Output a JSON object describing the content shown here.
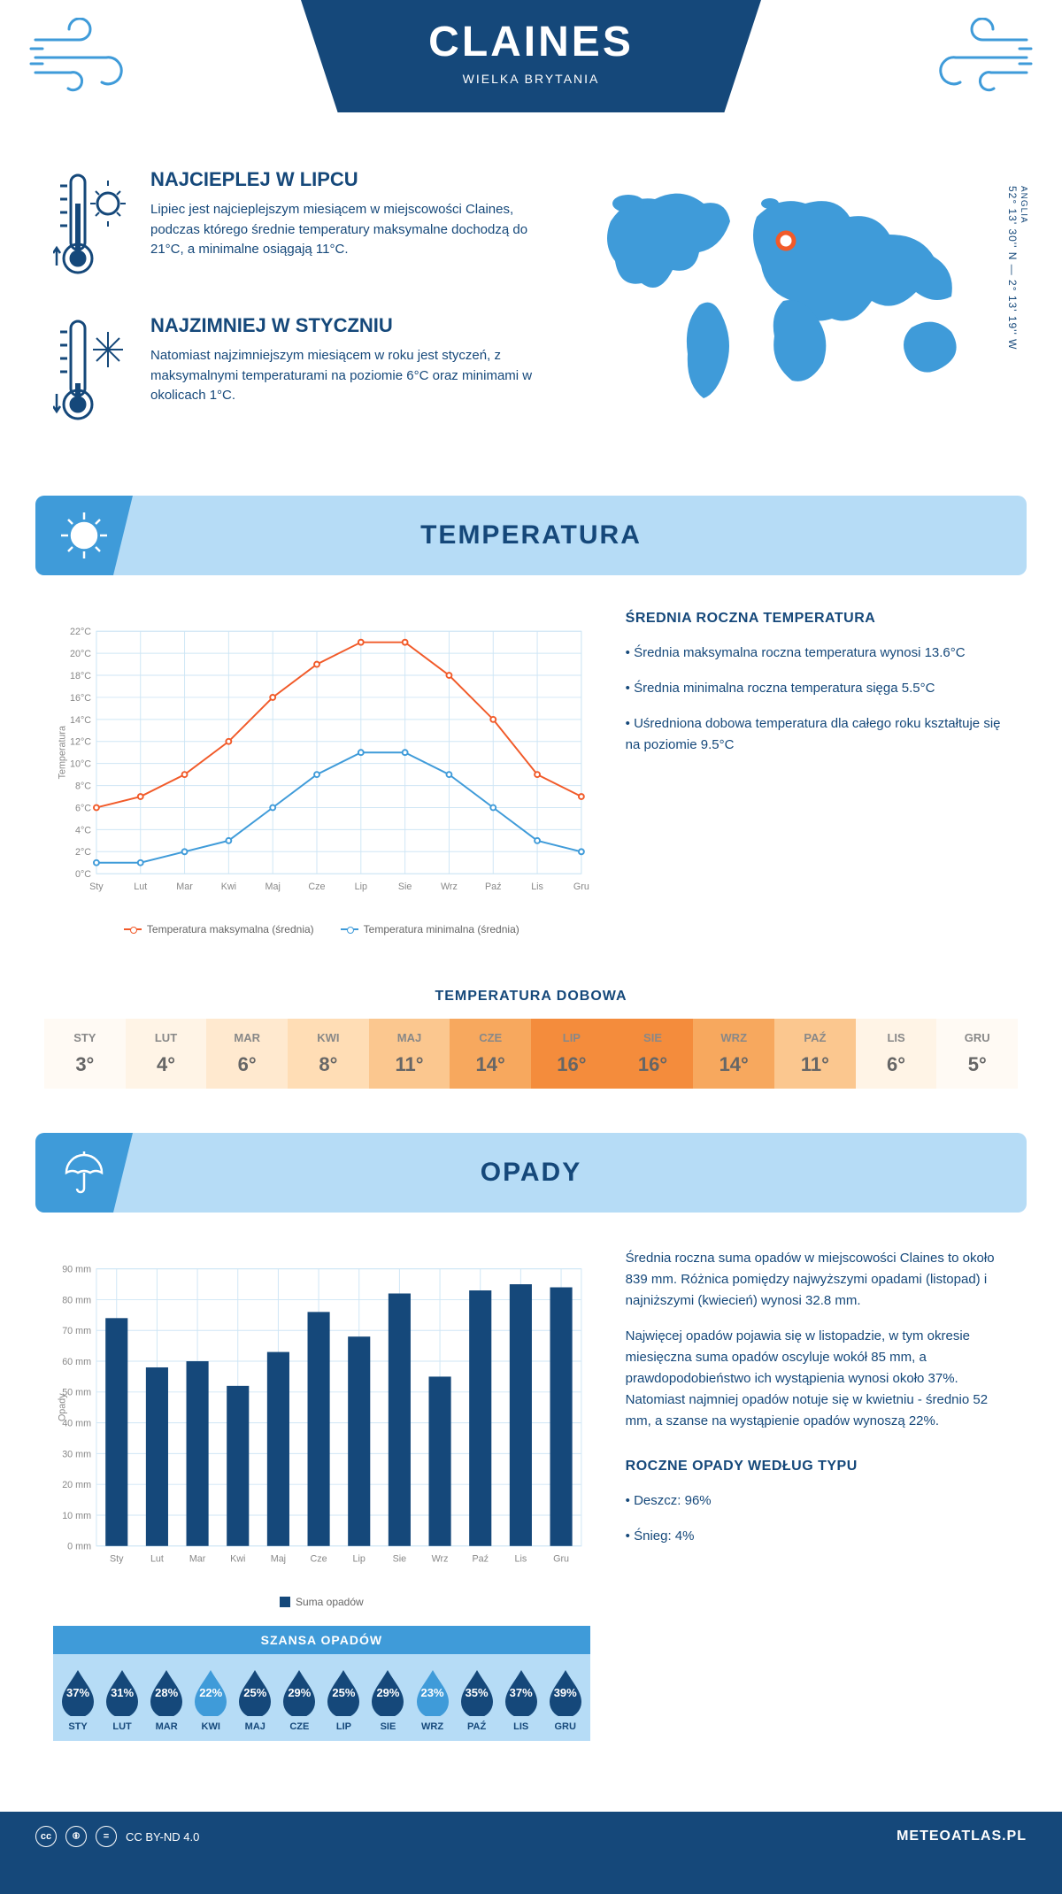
{
  "header": {
    "title": "CLAINES",
    "subtitle": "WIELKA BRYTANIA",
    "coords": "52° 13' 30'' N — 2° 13' 19'' W",
    "region": "ANGLIA"
  },
  "intro": {
    "hot": {
      "title": "NAJCIEPLEJ W LIPCU",
      "text": "Lipiec jest najcieplejszym miesiącem w miejscowości Claines, podczas którego średnie temperatury maksymalne dochodzą do 21°C, a minimalne osiągają 11°C."
    },
    "cold": {
      "title": "NAJZIMNIEJ W STYCZNIU",
      "text": "Natomiast najzimniejszym miesiącem w roku jest styczeń, z maksymalnymi temperaturami na poziomie 6°C oraz minimami w okolicach 1°C."
    }
  },
  "temperature": {
    "section_title": "TEMPERATURA",
    "chart": {
      "type": "line",
      "months": [
        "Sty",
        "Lut",
        "Mar",
        "Kwi",
        "Maj",
        "Cze",
        "Lip",
        "Sie",
        "Wrz",
        "Paź",
        "Lis",
        "Gru"
      ],
      "max_series": [
        6,
        7,
        9,
        12,
        16,
        19,
        21,
        21,
        18,
        14,
        9,
        7
      ],
      "min_series": [
        1,
        1,
        2,
        3,
        6,
        9,
        11,
        11,
        9,
        6,
        3,
        2
      ],
      "max_color": "#f15a29",
      "min_color": "#3f9bd9",
      "ylim": [
        0,
        22
      ],
      "ytick_step": 2,
      "ylabel": "Temperatura",
      "grid_color": "#cfe6f5",
      "axis_color": "#888888",
      "marker_fill": "#ffffff",
      "line_width": 2,
      "marker_radius": 3,
      "legend_max": "Temperatura maksymalna (średnia)",
      "legend_min": "Temperatura minimalna (średnia)"
    },
    "info": {
      "title": "ŚREDNIA ROCZNA TEMPERATURA",
      "bullets": [
        "• Średnia maksymalna roczna temperatura wynosi 13.6°C",
        "• Średnia minimalna roczna temperatura sięga 5.5°C",
        "• Uśredniona dobowa temperatura dla całego roku kształtuje się na poziomie 9.5°C"
      ]
    },
    "daily": {
      "title": "TEMPERATURA DOBOWA",
      "months": [
        "STY",
        "LUT",
        "MAR",
        "KWI",
        "MAJ",
        "CZE",
        "LIP",
        "SIE",
        "WRZ",
        "PAŹ",
        "LIS",
        "GRU"
      ],
      "values": [
        "3°",
        "4°",
        "6°",
        "8°",
        "11°",
        "14°",
        "16°",
        "16°",
        "14°",
        "11°",
        "6°",
        "5°"
      ],
      "bg_colors": [
        "#fffaf4",
        "#fff4e6",
        "#ffe9cf",
        "#ffddb5",
        "#fbc78f",
        "#f7a85e",
        "#f48c3c",
        "#f48c3c",
        "#f7a85e",
        "#fbc78f",
        "#fff4e6",
        "#fffaf4"
      ]
    }
  },
  "precip": {
    "section_title": "OPADY",
    "chart": {
      "type": "bar",
      "months": [
        "Sty",
        "Lut",
        "Mar",
        "Kwi",
        "Maj",
        "Cze",
        "Lip",
        "Sie",
        "Wrz",
        "Paź",
        "Lis",
        "Gru"
      ],
      "values": [
        74,
        58,
        60,
        52,
        63,
        76,
        68,
        82,
        55,
        83,
        85,
        84
      ],
      "bar_color": "#15487a",
      "ylim": [
        0,
        90
      ],
      "ytick_step": 10,
      "ylabel": "Opady",
      "grid_color": "#cfe6f5",
      "unit": "mm",
      "legend": "Suma opadów",
      "bar_width": 0.55
    },
    "info": {
      "p1": "Średnia roczna suma opadów w miejscowości Claines to około 839 mm. Różnica pomiędzy najwyższymi opadami (listopad) i najniższymi (kwiecień) wynosi 32.8 mm.",
      "p2": "Najwięcej opadów pojawia się w listopadzie, w tym okresie miesięczna suma opadów oscyluje wokół 85 mm, a prawdopodobieństwo ich wystąpienia wynosi około 37%. Natomiast najmniej opadów notuje się w kwietniu - średnio 52 mm, a szanse na wystąpienie opadów wynoszą 22%.",
      "type_title": "ROCZNE OPADY WEDŁUG TYPU",
      "type_bullets": [
        "• Deszcz: 96%",
        "• Śnieg: 4%"
      ]
    },
    "chance": {
      "title": "SZANSA OPADÓW",
      "months": [
        "STY",
        "LUT",
        "MAR",
        "KWI",
        "MAJ",
        "CZE",
        "LIP",
        "SIE",
        "WRZ",
        "PAŹ",
        "LIS",
        "GRU"
      ],
      "values": [
        "37%",
        "31%",
        "28%",
        "22%",
        "25%",
        "29%",
        "25%",
        "29%",
        "23%",
        "35%",
        "37%",
        "39%"
      ],
      "drop_colors": [
        "#15487a",
        "#15487a",
        "#15487a",
        "#3f9bd9",
        "#15487a",
        "#15487a",
        "#15487a",
        "#15487a",
        "#3f9bd9",
        "#15487a",
        "#15487a",
        "#15487a"
      ]
    }
  },
  "footer": {
    "license": "CC BY-ND 4.0",
    "site": "METEOATLAS.PL"
  },
  "colors": {
    "primary": "#15487a",
    "light_blue": "#b6dcf6",
    "mid_blue": "#3f9bd9",
    "map_fill": "#3f9bd9",
    "marker": "#f15a29"
  }
}
